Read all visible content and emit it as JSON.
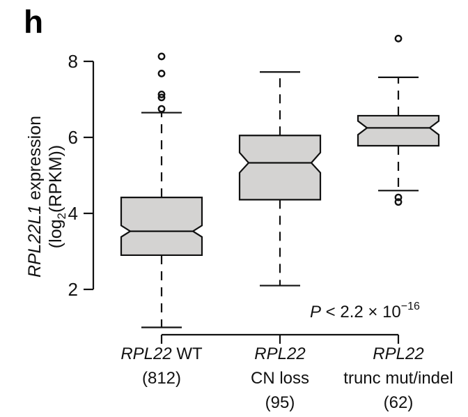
{
  "panel_letter": "h",
  "chart_data": {
    "type": "boxplot",
    "notched": true,
    "ylabel_italic": "RPL22L1",
    "ylabel_rest": " expression",
    "ylabel_line2_pre": "(log",
    "ylabel_line2_sub": "2",
    "ylabel_line2_post": "(RPKM))",
    "ylim": [
      0.9,
      8.6
    ],
    "yticks": [
      2,
      4,
      6,
      8
    ],
    "groups": [
      {
        "label_italic": "RPL22",
        "label_rest": " WT",
        "label_line2": "(812)",
        "label_line3": "",
        "whisker_low": 1.0,
        "q1": 2.9,
        "notch_low": 3.38,
        "median": 3.53,
        "notch_high": 3.68,
        "q3": 4.42,
        "whisker_high": 6.65,
        "outliers": [
          6.75,
          7.05,
          7.13,
          7.68,
          8.13
        ]
      },
      {
        "label_italic": "RPL22",
        "label_rest": "",
        "label_line2": "CN loss",
        "label_line3": "(95)",
        "whisker_low": 2.1,
        "q1": 4.36,
        "notch_low": 5.07,
        "median": 5.33,
        "notch_high": 5.6,
        "q3": 6.05,
        "whisker_high": 7.72,
        "outliers": []
      },
      {
        "label_italic": "RPL22",
        "label_rest": "",
        "label_line2": "trunc mut/indel",
        "label_line3": "(62)",
        "whisker_low": 4.6,
        "q1": 5.78,
        "notch_low": 6.07,
        "median": 6.25,
        "notch_high": 6.43,
        "q3": 6.57,
        "whisker_high": 7.58,
        "outliers": [
          4.3,
          4.42,
          8.6
        ]
      }
    ],
    "pvalue_italic": "P",
    "pvalue_text": " < 2.2 × 10",
    "pvalue_exp": "−16"
  }
}
